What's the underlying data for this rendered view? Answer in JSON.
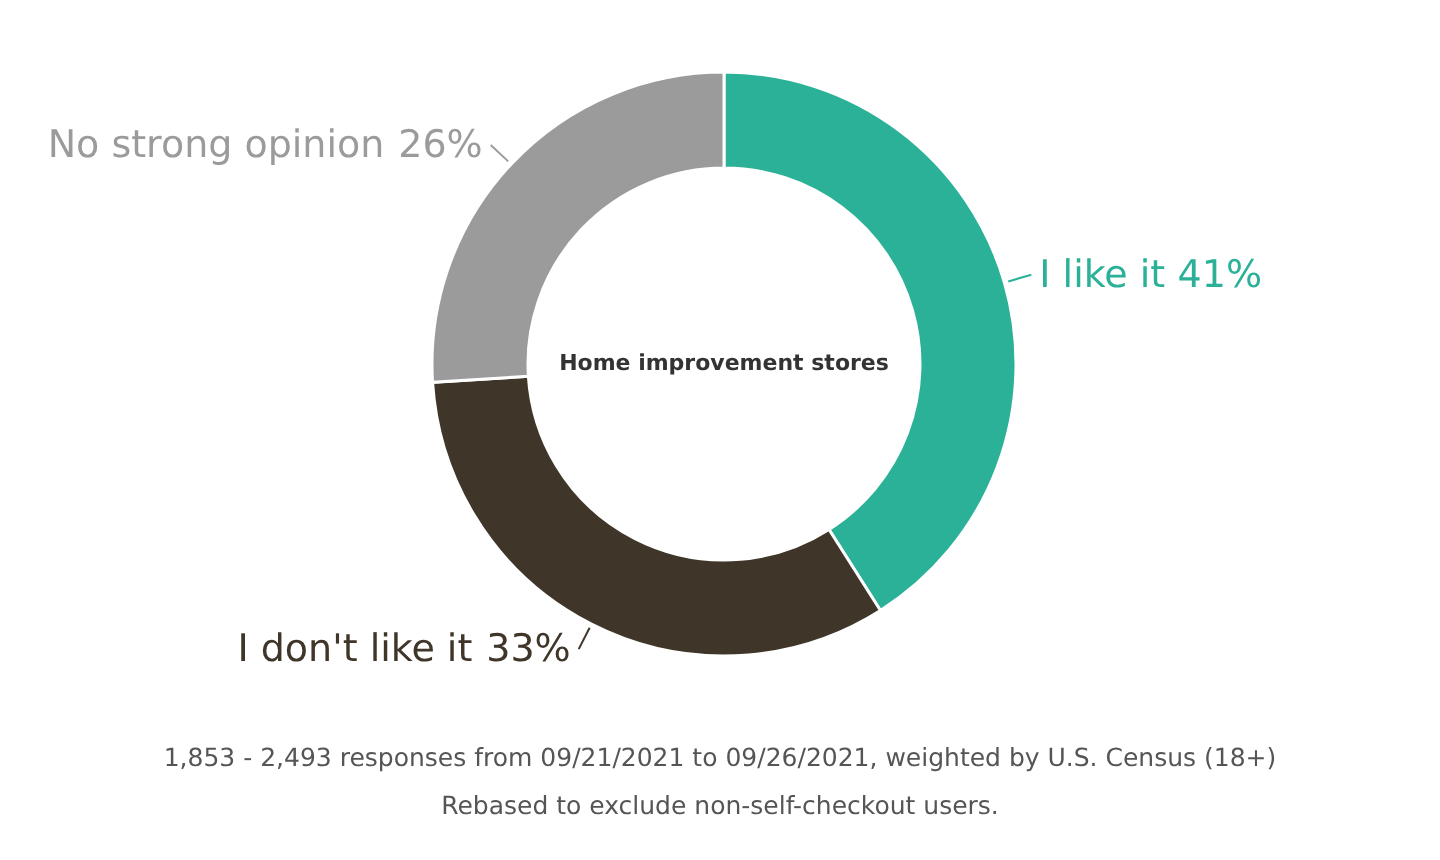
{
  "chart_data": {
    "type": "donut",
    "title": "Home improvement stores",
    "categories": [
      "I like it",
      "I don't like it",
      "No strong opinion"
    ],
    "values": [
      41,
      33,
      26
    ],
    "colors": [
      "#2bb197",
      "#3f3629",
      "#9b9b9b"
    ],
    "value_labels": [
      "41%",
      "33%",
      "26%"
    ],
    "annotations": [
      "1,853 - 2,493 responses from 09/21/2021 to 09/26/2021, weighted by U.S. Census (18+)",
      "Rebased to exclude non-self-checkout users."
    ]
  }
}
